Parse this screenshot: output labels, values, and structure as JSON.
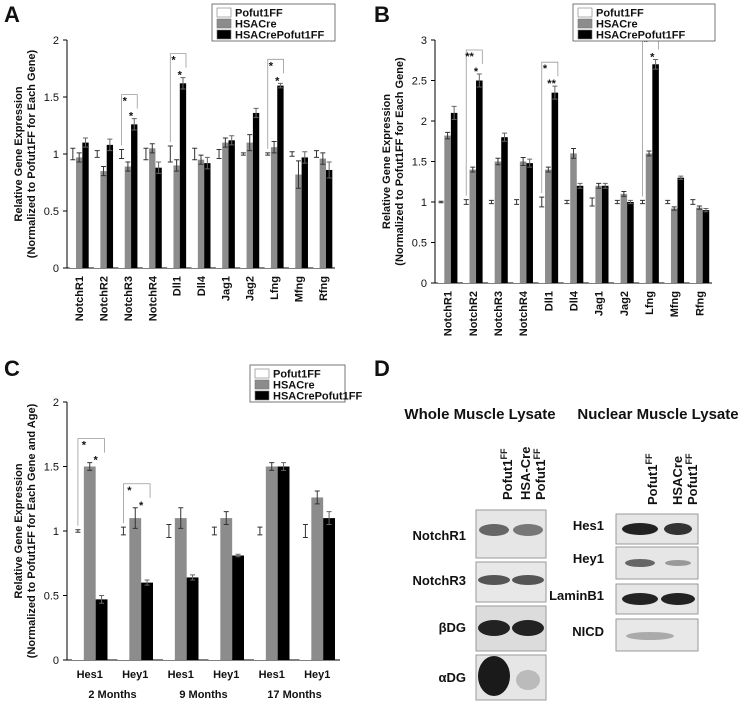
{
  "panel_labels": [
    "A",
    "B",
    "C",
    "D"
  ],
  "chart_data": [
    {
      "type": "bar",
      "ylabel": [
        "Relative Gene Expression",
        "(Normalized to Pofut1FF for Each Gene)"
      ],
      "categories": [
        "NotchR1",
        "NotchR2",
        "NotchR3",
        "NotchR4",
        "Dll1",
        "Dll4",
        "Jag1",
        "Jag2",
        "Lfng",
        "Mfng",
        "Rfng"
      ],
      "series": [
        {
          "name": "Pofut1FF",
          "color": "#ffffff",
          "values": [
            1,
            1,
            1,
            1,
            1,
            1,
            1,
            1,
            1,
            1,
            1
          ],
          "errors": [
            0.05,
            0.03,
            0.04,
            0.05,
            0.07,
            0.05,
            0.04,
            0.01,
            0.01,
            0.02,
            0.03
          ]
        },
        {
          "name": "HSACre",
          "color": "#8c8c8c",
          "values": [
            0.97,
            0.85,
            0.89,
            1.05,
            0.9,
            0.95,
            1.1,
            1.1,
            1.06,
            0.82,
            0.96
          ],
          "errors": [
            0.04,
            0.04,
            0.04,
            0.04,
            0.05,
            0.04,
            0.04,
            0.07,
            0.05,
            0.12,
            0.05
          ]
        },
        {
          "name": "HSACrePofut1FF",
          "color": "#000000",
          "values": [
            1.1,
            1.08,
            1.26,
            0.88,
            1.62,
            0.92,
            1.12,
            1.36,
            1.6,
            0.97,
            0.86
          ],
          "errors": [
            0.04,
            0.05,
            0.05,
            0.05,
            0.05,
            0.05,
            0.04,
            0.04,
            0.02,
            0.05,
            0.07
          ]
        }
      ],
      "significance": [
        null,
        null,
        [
          "*",
          "*"
        ],
        null,
        [
          "*",
          "*"
        ],
        null,
        null,
        null,
        [
          "*",
          "*"
        ],
        null,
        null
      ],
      "ylim": [
        0,
        2
      ],
      "yticks": [
        0,
        0.5,
        1,
        1.5,
        2
      ]
    },
    {
      "type": "bar",
      "ylabel": [
        "Relative Gene Expression",
        "(Normalized to Pofut1FF for Each Gene)"
      ],
      "categories": [
        "NotchR1",
        "NotchR2",
        "NotchR3",
        "NotchR4",
        "Dll1",
        "Dll4",
        "Jag1",
        "Jag2",
        "Lfng",
        "Mfng",
        "Rfng"
      ],
      "series": [
        {
          "name": "Pofut1FF",
          "color": "#ffffff",
          "values": [
            1,
            1,
            1,
            1,
            1,
            1,
            1,
            1,
            1,
            1,
            1
          ],
          "errors": [
            0.01,
            0.03,
            0.02,
            0.03,
            0.06,
            0.02,
            0.05,
            0.02,
            0.02,
            0.02,
            0.03
          ]
        },
        {
          "name": "HSACre",
          "color": "#8c8c8c",
          "values": [
            1.82,
            1.4,
            1.5,
            1.5,
            1.4,
            1.6,
            1.2,
            1.1,
            1.6,
            0.92,
            0.93
          ],
          "errors": [
            0.04,
            0.03,
            0.04,
            0.05,
            0.03,
            0.06,
            0.03,
            0.03,
            0.03,
            0.02,
            0.02
          ]
        },
        {
          "name": "HSACrePofut1FF",
          "color": "#000000",
          "values": [
            2.1,
            2.5,
            1.8,
            1.48,
            2.35,
            1.2,
            1.2,
            1.0,
            2.7,
            1.3,
            0.9
          ],
          "errors": [
            0.08,
            0.08,
            0.05,
            0.05,
            0.08,
            0.03,
            0.03,
            0.02,
            0.06,
            0.02,
            0.02
          ]
        }
      ],
      "significance": [
        null,
        [
          "**",
          "*"
        ],
        null,
        null,
        [
          "*",
          "**"
        ],
        null,
        null,
        null,
        [
          "*",
          "*"
        ],
        null,
        null
      ],
      "ylim": [
        0,
        3
      ],
      "yticks": [
        0,
        0.5,
        1,
        1.5,
        2,
        2.5,
        3
      ]
    },
    {
      "type": "bar",
      "ylabel": [
        "Relative Gene Expression",
        "(Normalized to Pofut1FF for Each Gene and Age)"
      ],
      "categories": [
        "Hes1",
        "Hey1",
        "Hes1",
        "Hey1",
        "Hes1",
        "Hey1"
      ],
      "x_groups": [
        "2 Months",
        "9 Months",
        "17 Months"
      ],
      "series": [
        {
          "name": "Pofut1FF",
          "color": "#ffffff",
          "values": [
            1,
            1,
            1,
            1,
            1,
            1
          ],
          "errors": [
            0.01,
            0.03,
            0.05,
            0.03,
            0.03,
            0.05
          ]
        },
        {
          "name": "HSACre",
          "color": "#8c8c8c",
          "values": [
            1.5,
            1.1,
            1.1,
            1.1,
            1.5,
            1.26
          ],
          "errors": [
            0.03,
            0.08,
            0.08,
            0.05,
            0.03,
            0.05
          ]
        },
        {
          "name": "HSACrePofut1FF",
          "color": "#000000",
          "values": [
            0.47,
            0.6,
            0.64,
            0.81,
            1.5,
            1.1
          ],
          "errors": [
            0.03,
            0.02,
            0.02,
            0.01,
            0.03,
            0.05
          ]
        }
      ],
      "significance": [
        [
          "*",
          "*"
        ],
        [
          "*",
          "*"
        ],
        null,
        null,
        null,
        null
      ],
      "ylim": [
        0,
        2
      ],
      "yticks": [
        0,
        0.5,
        1,
        1.5,
        2
      ]
    }
  ],
  "blots": {
    "whole": {
      "title": "Whole Muscle Lysate",
      "columns": [
        {
          "lines": [
            "Pofut1"
          ],
          "sup": "FF"
        },
        {
          "lines": [
            "HSA-Cre",
            "Pofut1"
          ],
          "sup": "FF"
        }
      ],
      "rows": [
        "NotchR1",
        "NotchR3",
        "βDG",
        "αDG"
      ]
    },
    "nuclear": {
      "title": "Nuclear Muscle Lysate",
      "columns": [
        {
          "lines": [
            "Pofut1"
          ],
          "sup": "FF"
        },
        {
          "lines": [
            "HSACre",
            "Pofut1"
          ],
          "sup": "FF"
        }
      ],
      "rows": [
        "Hes1",
        "Hey1",
        "LaminB1",
        "NICD"
      ]
    }
  }
}
